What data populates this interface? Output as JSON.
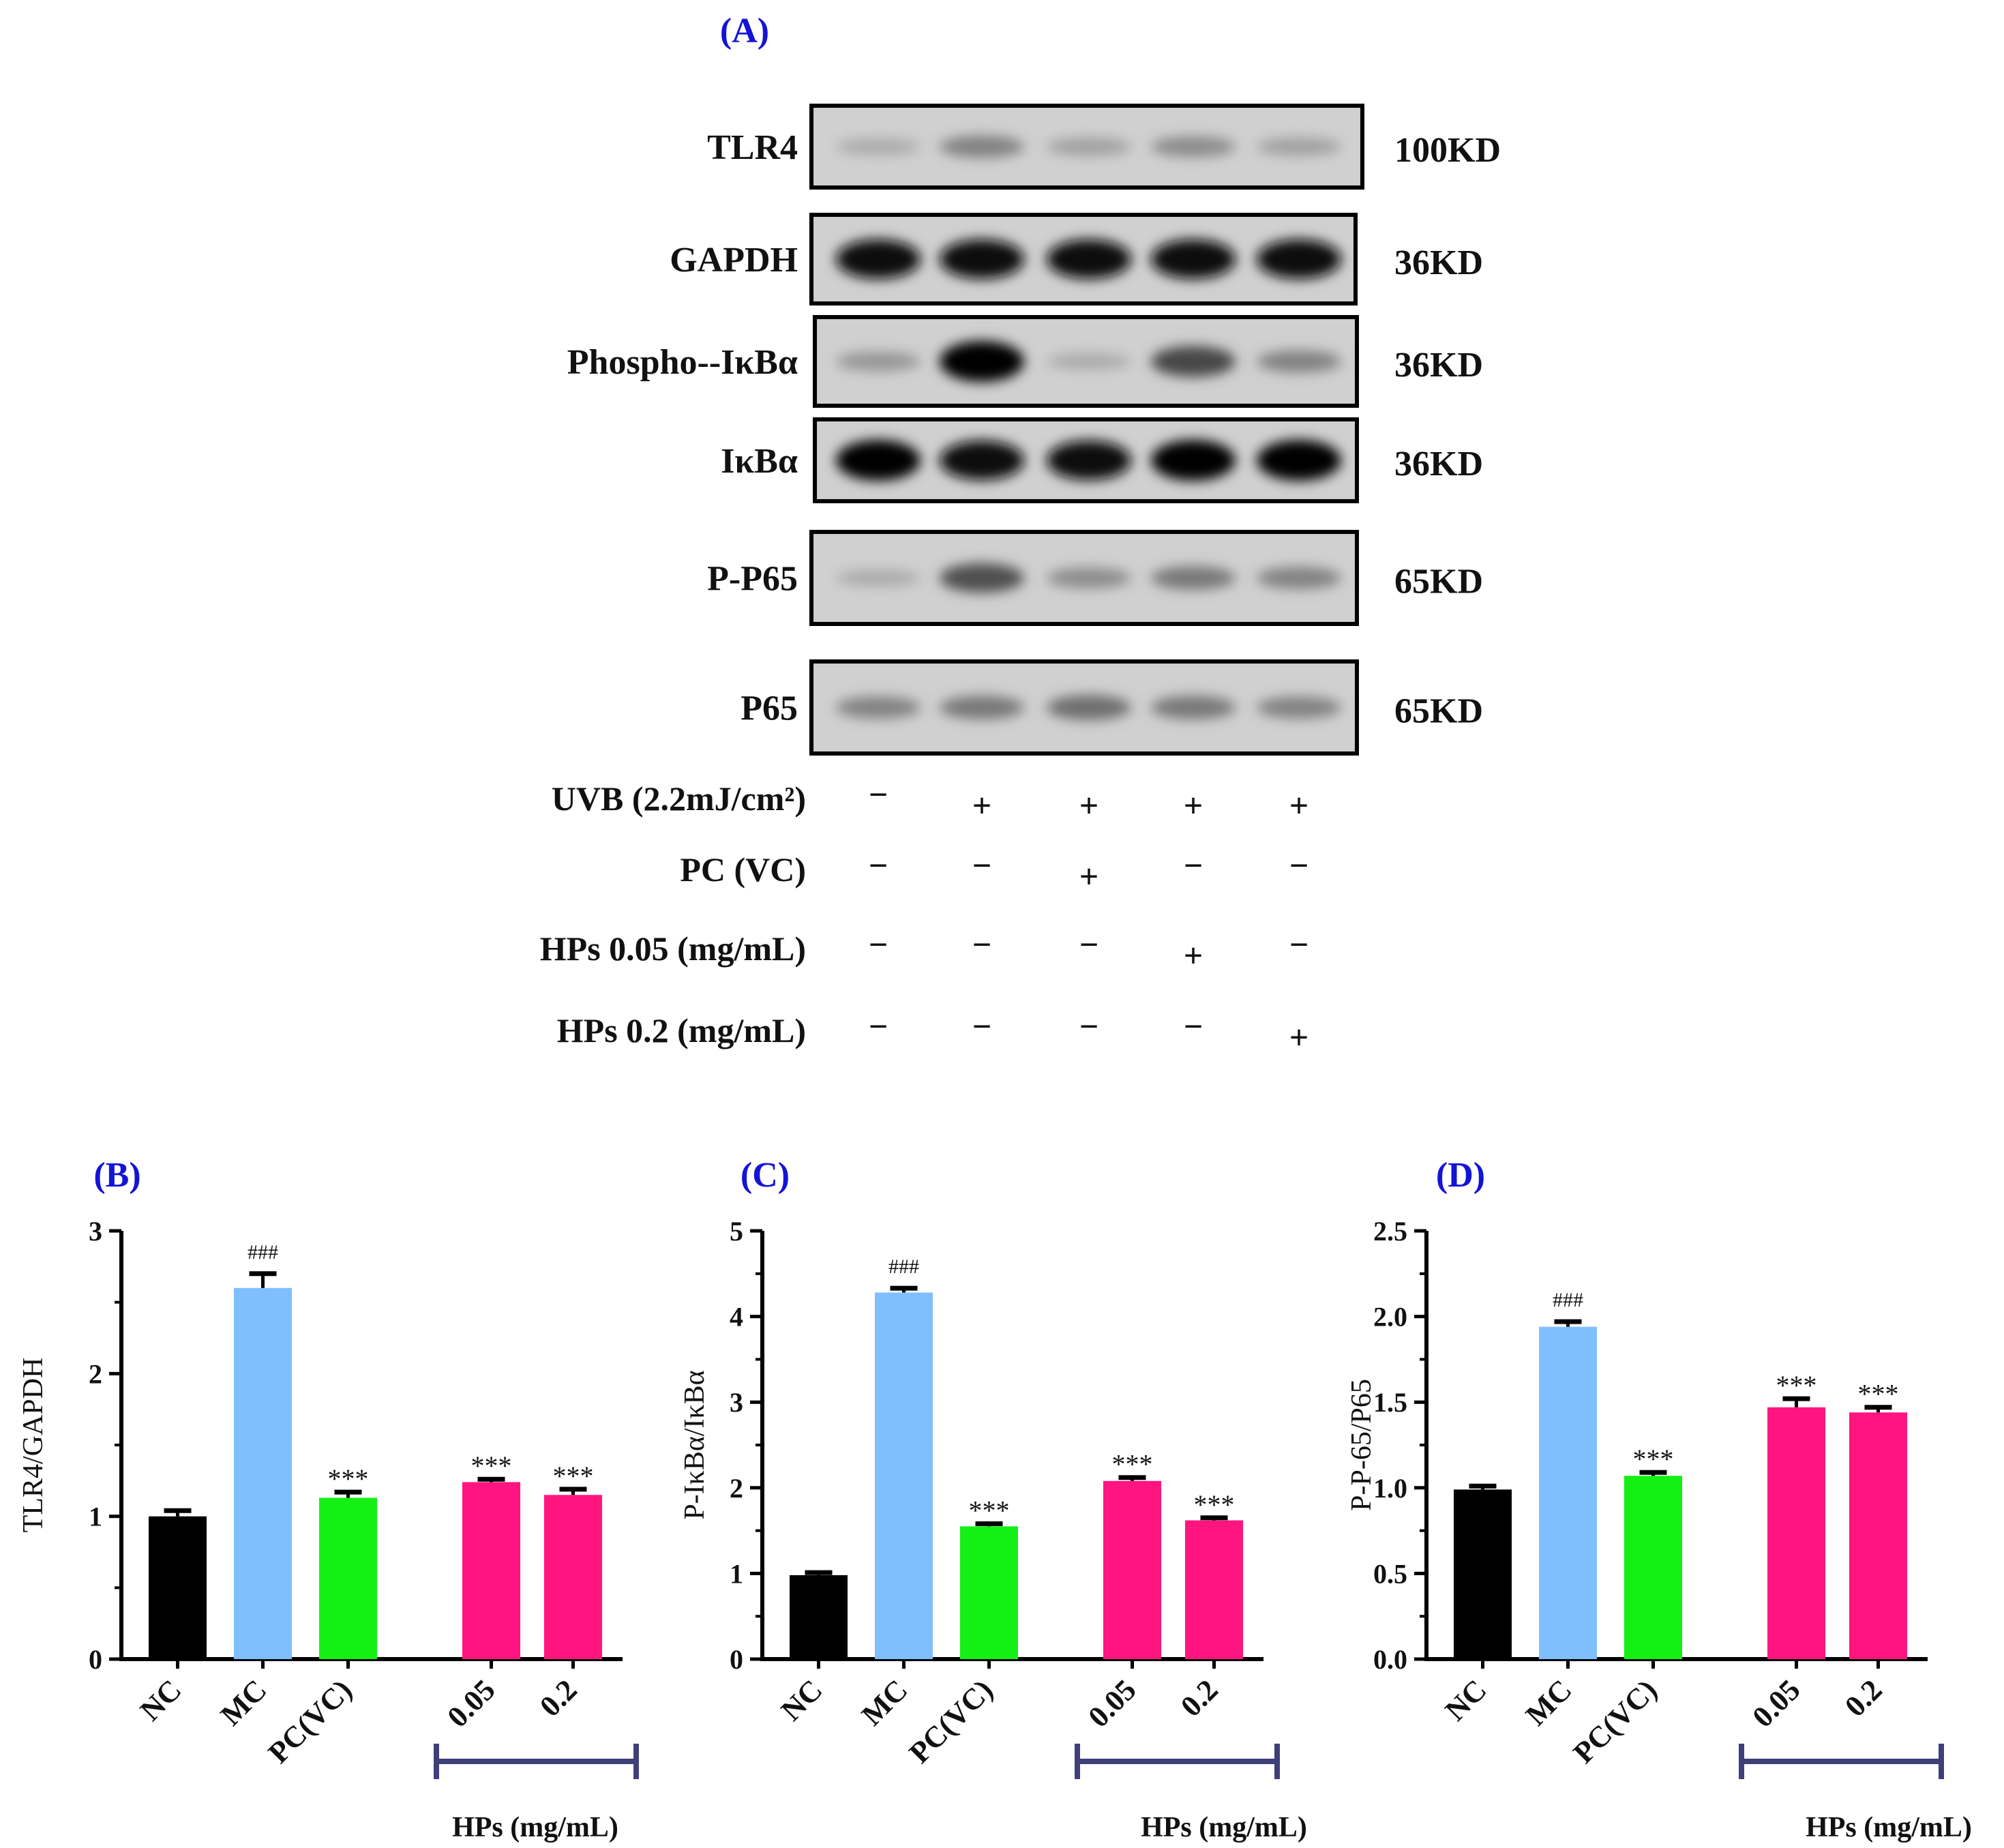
{
  "panel_a": {
    "label": "(A)",
    "blots": [
      {
        "name": "TLR4",
        "kd": "100KD"
      },
      {
        "name": "GAPDH",
        "kd": "36KD"
      },
      {
        "name": "Phospho--IκBα",
        "kd": "36KD"
      },
      {
        "name": "IκBα",
        "kd": "36KD"
      },
      {
        "name": "P-P65",
        "kd": "65KD"
      },
      {
        "name": "P65",
        "kd": "65KD"
      }
    ],
    "band_intensity": [
      [
        0.15,
        0.35,
        0.2,
        0.3,
        0.2
      ],
      [
        0.95,
        0.95,
        0.95,
        0.95,
        0.95
      ],
      [
        0.25,
        1.0,
        0.15,
        0.65,
        0.35
      ],
      [
        1.0,
        0.95,
        0.95,
        1.0,
        1.0
      ],
      [
        0.15,
        0.6,
        0.3,
        0.4,
        0.35
      ],
      [
        0.35,
        0.4,
        0.45,
        0.4,
        0.35
      ]
    ],
    "conditions": [
      {
        "label": "UVB   (2.2mJ/cm²)",
        "signs": [
          "−",
          "+",
          "+",
          "+",
          "+"
        ]
      },
      {
        "label": "PC (VC)",
        "signs": [
          "−",
          "−",
          "+",
          "−",
          "−"
        ]
      },
      {
        "label": "HPs 0.05 (mg/mL)",
        "signs": [
          "−",
          "−",
          "−",
          "+",
          "−"
        ]
      },
      {
        "label": "HPs 0.2 (mg/mL)",
        "signs": [
          "−",
          "−",
          "−",
          "−",
          "+"
        ]
      }
    ]
  },
  "chart_data": [
    {
      "type": "bar",
      "panel": "(B)",
      "ylabel": "TLR4/GAPDH",
      "categories": [
        "NC",
        "MC",
        "PC(VC)",
        "0.05",
        "0.2"
      ],
      "values": [
        1.0,
        2.6,
        1.13,
        1.24,
        1.15
      ],
      "errors": [
        0.04,
        0.1,
        0.04,
        0.02,
        0.04
      ],
      "annotations": [
        "",
        "###",
        "***",
        "***",
        "***"
      ],
      "colors": [
        "#000000",
        "#80bfff",
        "#14f014",
        "#ff1480",
        "#ff1480"
      ],
      "ylim": [
        0,
        3
      ],
      "yticks": [
        "0",
        "1",
        "2",
        "3"
      ],
      "group_label": "HPs (mg/mL)"
    },
    {
      "type": "bar",
      "panel": "(C)",
      "ylabel": "P-IκBα/IκBα",
      "categories": [
        "NC",
        "MC",
        "PC(VC)",
        "0.05",
        "0.2"
      ],
      "values": [
        0.98,
        4.28,
        1.55,
        2.08,
        1.62
      ],
      "errors": [
        0.03,
        0.05,
        0.03,
        0.04,
        0.03
      ],
      "annotations": [
        "",
        "###",
        "***",
        "***",
        "***"
      ],
      "colors": [
        "#000000",
        "#80bfff",
        "#14f014",
        "#ff1480",
        "#ff1480"
      ],
      "ylim": [
        0,
        5
      ],
      "yticks": [
        "0",
        "1",
        "2",
        "3",
        "4",
        "5"
      ],
      "group_label": "HPs (mg/mL)"
    },
    {
      "type": "bar",
      "panel": "(D)",
      "ylabel": "P-P-65/P65",
      "categories": [
        "NC",
        "MC",
        "PC(VC)",
        "0.05",
        "0.2"
      ],
      "values": [
        0.99,
        1.94,
        1.07,
        1.47,
        1.44
      ],
      "errors": [
        0.02,
        0.03,
        0.02,
        0.05,
        0.03
      ],
      "annotations": [
        "",
        "###",
        "***",
        "***",
        "***"
      ],
      "colors": [
        "#000000",
        "#80bfff",
        "#14f014",
        "#ff1480",
        "#ff1480"
      ],
      "ylim": [
        0,
        2.5
      ],
      "yticks": [
        "0.0",
        "0.5",
        "1.0",
        "1.5",
        "2.0",
        "2.5"
      ],
      "group_label": "HPs (mg/mL)"
    }
  ]
}
